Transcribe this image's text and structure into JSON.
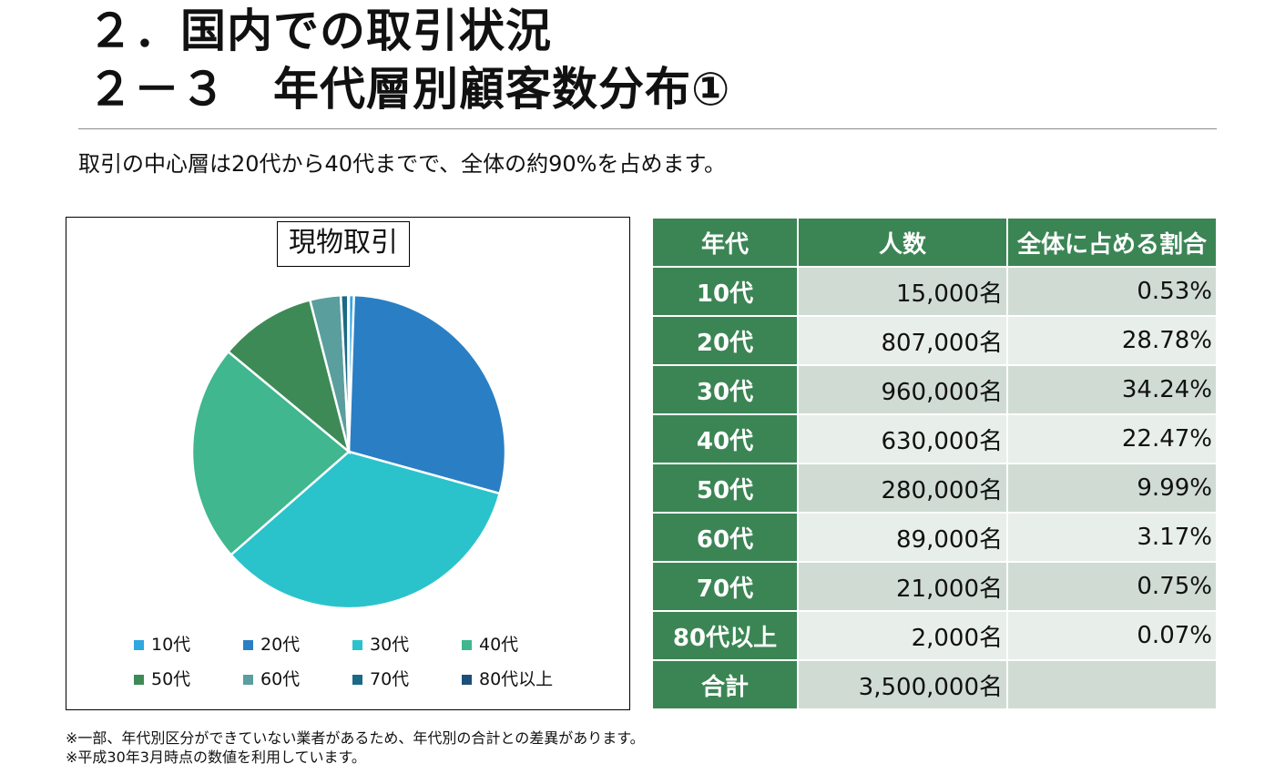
{
  "header": {
    "title_line1": "２．国内での取引状況",
    "title_line2": "２－３　年代層別顧客数分布①",
    "subtitle": "取引の中心層は20代から40代までで、全体の約90%を占めます。"
  },
  "chart_data": {
    "type": "pie",
    "title": "現物取引",
    "categories": [
      "10代",
      "20代",
      "30代",
      "40代",
      "50代",
      "60代",
      "70代",
      "80代以上"
    ],
    "values": [
      0.53,
      28.78,
      34.24,
      22.47,
      9.99,
      3.17,
      0.75,
      0.07
    ],
    "colors": [
      "#2fa7e0",
      "#2a7fc4",
      "#2ac3cc",
      "#40b78e",
      "#3d8a57",
      "#5a9e9e",
      "#1a6a85",
      "#1c4f7a"
    ],
    "legend_position": "bottom"
  },
  "table": {
    "headers": [
      "年代",
      "人数",
      "全体に占める割合"
    ],
    "rows": [
      {
        "age": "10代",
        "count": "15,000名",
        "pct": "0.53%"
      },
      {
        "age": "20代",
        "count": "807,000名",
        "pct": "28.78%"
      },
      {
        "age": "30代",
        "count": "960,000名",
        "pct": "34.24%"
      },
      {
        "age": "40代",
        "count": "630,000名",
        "pct": "22.47%"
      },
      {
        "age": "50代",
        "count": "280,000名",
        "pct": "9.99%"
      },
      {
        "age": "60代",
        "count": "89,000名",
        "pct": "3.17%"
      },
      {
        "age": "70代",
        "count": "21,000名",
        "pct": "0.75%"
      },
      {
        "age": "80代以上",
        "count": "2,000名",
        "pct": "0.07%"
      }
    ],
    "total": {
      "label": "合計",
      "count": "3,500,000名",
      "pct": ""
    }
  },
  "notes": [
    "※一部、年代別区分ができていない業者があるため、年代別の合計との差異があります。",
    "※平成30年3月時点の数値を利用しています。"
  ]
}
